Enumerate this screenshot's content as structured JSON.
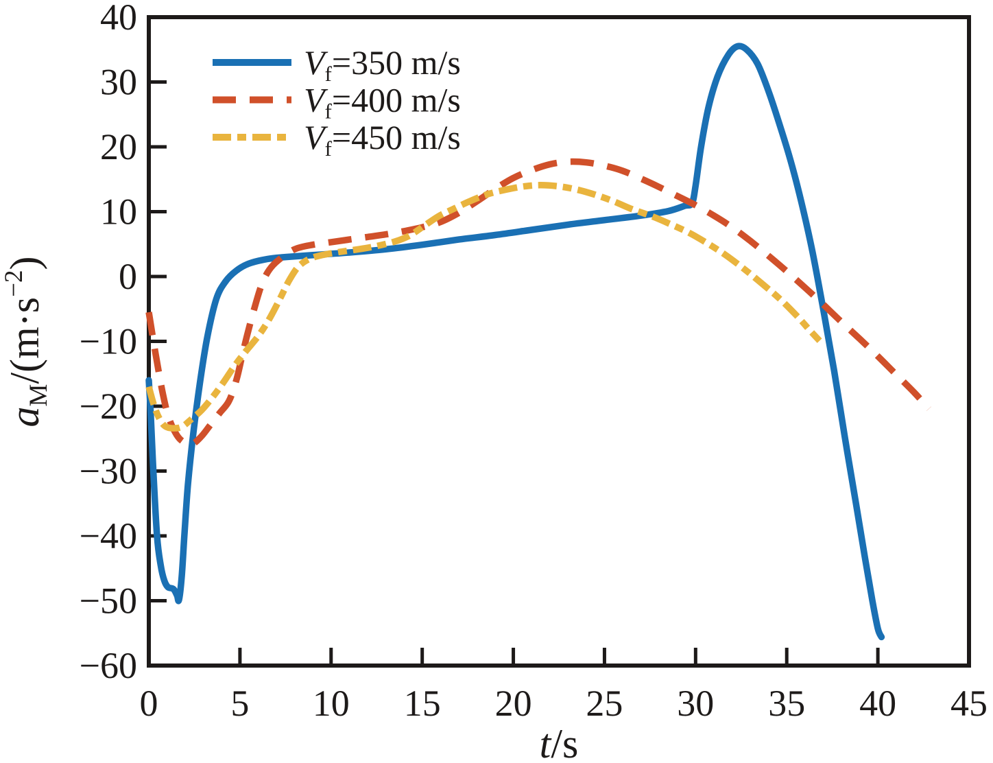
{
  "figure": {
    "background": "#ffffff",
    "axis_color": "#1d1a19"
  },
  "chart_data": {
    "type": "line",
    "title": "",
    "xlabel": "t/s",
    "ylabel": "aM/(m·s−2)",
    "xlabel_parts": [
      {
        "text": "t",
        "italic": true
      },
      {
        "text": "/s"
      }
    ],
    "ylabel_parts": [
      {
        "text": "a",
        "italic": true
      },
      {
        "text": "M",
        "sub": true
      },
      {
        "text": "/(m·s"
      },
      {
        "text": "−2",
        "sup": true
      },
      {
        "text": ")"
      }
    ],
    "xlim": [
      0,
      45
    ],
    "ylim": [
      -60,
      40
    ],
    "xticks": [
      0,
      5,
      10,
      15,
      20,
      25,
      30,
      35,
      40,
      45
    ],
    "yticks": [
      40,
      30,
      20,
      10,
      0,
      -10,
      -20,
      -30,
      -40,
      -50,
      -60
    ],
    "grid": false,
    "legend_position": "upper-left-inside",
    "series": [
      {
        "name": "Vf=350 m/s",
        "label_parts": [
          {
            "text": "V",
            "italic": true
          },
          {
            "text": "f",
            "sub": true
          },
          {
            "text": "=350 m/s"
          }
        ],
        "color": "#1a70b4",
        "line_style": "solid",
        "points": [
          [
            0,
            -16
          ],
          [
            0.1,
            -21
          ],
          [
            0.25,
            -30
          ],
          [
            0.45,
            -40
          ],
          [
            0.65,
            -44.5
          ],
          [
            0.85,
            -46.9
          ],
          [
            1.05,
            -47.9
          ],
          [
            1.35,
            -48.2
          ],
          [
            1.55,
            -49.2
          ],
          [
            1.65,
            -49.9
          ],
          [
            1.8,
            -46.5
          ],
          [
            1.95,
            -40
          ],
          [
            2.15,
            -32
          ],
          [
            2.45,
            -24
          ],
          [
            2.8,
            -16.5
          ],
          [
            3.2,
            -9.5
          ],
          [
            3.7,
            -3.5
          ],
          [
            4.2,
            -0.8
          ],
          [
            4.8,
            0.9
          ],
          [
            5.5,
            2.0
          ],
          [
            6.5,
            2.7
          ],
          [
            7.5,
            3.0
          ],
          [
            9,
            3.3
          ],
          [
            11,
            3.7
          ],
          [
            13,
            4.2
          ],
          [
            15,
            4.9
          ],
          [
            17,
            5.7
          ],
          [
            19,
            6.4
          ],
          [
            21,
            7.2
          ],
          [
            23,
            8.0
          ],
          [
            25,
            8.7
          ],
          [
            27,
            9.4
          ],
          [
            28.5,
            10.1
          ],
          [
            29.4,
            10.9
          ],
          [
            29.8,
            11.3
          ],
          [
            30.0,
            14
          ],
          [
            30.3,
            20
          ],
          [
            30.7,
            26
          ],
          [
            31.2,
            30.8
          ],
          [
            31.8,
            34.2
          ],
          [
            32.3,
            35.5
          ],
          [
            32.8,
            35.0
          ],
          [
            33.4,
            32.8
          ],
          [
            34.0,
            28.6
          ],
          [
            34.6,
            23.5
          ],
          [
            35.2,
            18
          ],
          [
            35.8,
            11.5
          ],
          [
            36.4,
            4
          ],
          [
            37.0,
            -5
          ],
          [
            37.6,
            -14.5
          ],
          [
            38.2,
            -25
          ],
          [
            38.8,
            -35
          ],
          [
            39.3,
            -43.5
          ],
          [
            39.7,
            -50
          ],
          [
            40.0,
            -54.3
          ],
          [
            40.2,
            -55.6
          ]
        ]
      },
      {
        "name": "Vf=400 m/s",
        "label_parts": [
          {
            "text": "V",
            "italic": true
          },
          {
            "text": "f",
            "sub": true
          },
          {
            "text": "=400 m/s"
          }
        ],
        "color": "#d0502a",
        "line_style": "dashed",
        "points": [
          [
            0,
            -5.5
          ],
          [
            0.2,
            -9
          ],
          [
            0.5,
            -14
          ],
          [
            0.8,
            -18.5
          ],
          [
            1.1,
            -21.8
          ],
          [
            1.5,
            -24.3
          ],
          [
            1.9,
            -25.5
          ],
          [
            2.4,
            -25.8
          ],
          [
            2.9,
            -24.6
          ],
          [
            3.4,
            -22.8
          ],
          [
            3.9,
            -21
          ],
          [
            4.4,
            -19.2
          ],
          [
            4.8,
            -16
          ],
          [
            5.1,
            -12.5
          ],
          [
            5.4,
            -9
          ],
          [
            5.8,
            -4.8
          ],
          [
            6.2,
            -1.2
          ],
          [
            6.6,
            1
          ],
          [
            7.1,
            2.5
          ],
          [
            8,
            4.2
          ],
          [
            9,
            4.9
          ],
          [
            10,
            5.3
          ],
          [
            11,
            5.7
          ],
          [
            12,
            6.1
          ],
          [
            13,
            6.5
          ],
          [
            14,
            7.0
          ],
          [
            15,
            7.6
          ],
          [
            16,
            8.4
          ],
          [
            17,
            9.8
          ],
          [
            18,
            11.6
          ],
          [
            19,
            13.5
          ],
          [
            20,
            15.2
          ],
          [
            21,
            16.4
          ],
          [
            22,
            17.3
          ],
          [
            23,
            17.7
          ],
          [
            24,
            17.6
          ],
          [
            25,
            17.1
          ],
          [
            26,
            16.3
          ],
          [
            27,
            15.1
          ],
          [
            28,
            13.8
          ],
          [
            29,
            12.4
          ],
          [
            30,
            11.0
          ],
          [
            31,
            9.4
          ],
          [
            32,
            7.6
          ],
          [
            33,
            5.5
          ],
          [
            34,
            3.2
          ],
          [
            35,
            0.8
          ],
          [
            36,
            -1.7
          ],
          [
            37,
            -4.3
          ],
          [
            38,
            -7.0
          ],
          [
            39,
            -9.6
          ],
          [
            40,
            -12.3
          ],
          [
            41,
            -15.1
          ],
          [
            42,
            -17.9
          ],
          [
            42.8,
            -20.4
          ]
        ]
      },
      {
        "name": "Vf=450 m/s",
        "label_parts": [
          {
            "text": "V",
            "italic": true
          },
          {
            "text": "f",
            "sub": true
          },
          {
            "text": "=450 m/s"
          }
        ],
        "color": "#e9b43e",
        "line_style": "dashdot",
        "points": [
          [
            0,
            -17
          ],
          [
            0.3,
            -20
          ],
          [
            0.6,
            -22
          ],
          [
            0.9,
            -23.1
          ],
          [
            1.3,
            -23.4
          ],
          [
            1.8,
            -23.2
          ],
          [
            2.3,
            -22.1
          ],
          [
            2.9,
            -20.6
          ],
          [
            3.5,
            -18.6
          ],
          [
            4.1,
            -16.3
          ],
          [
            4.7,
            -13.8
          ],
          [
            5.3,
            -11.6
          ],
          [
            6.0,
            -9.2
          ],
          [
            6.6,
            -6.6
          ],
          [
            7.2,
            -3.4
          ],
          [
            7.7,
            -0.6
          ],
          [
            8.2,
            1.5
          ],
          [
            8.8,
            2.7
          ],
          [
            9.5,
            3.3
          ],
          [
            10.5,
            3.8
          ],
          [
            11.5,
            4.2
          ],
          [
            12.5,
            4.7
          ],
          [
            13.5,
            5.4
          ],
          [
            14.3,
            6.3
          ],
          [
            15.1,
            7.8
          ],
          [
            15.9,
            9.3
          ],
          [
            16.7,
            10.4
          ],
          [
            17.6,
            11.6
          ],
          [
            18.6,
            12.7
          ],
          [
            19.6,
            13.4
          ],
          [
            20.6,
            13.9
          ],
          [
            21.5,
            14.1
          ],
          [
            22.5,
            13.9
          ],
          [
            23.5,
            13.4
          ],
          [
            24.5,
            12.6
          ],
          [
            25.5,
            11.6
          ],
          [
            26.5,
            10.4
          ],
          [
            27.6,
            9.3
          ],
          [
            28.6,
            8.1
          ],
          [
            29.6,
            6.8
          ],
          [
            30.6,
            5.2
          ],
          [
            31.6,
            3.4
          ],
          [
            32.6,
            1.3
          ],
          [
            33.6,
            -1.0
          ],
          [
            34.6,
            -3.4
          ],
          [
            35.6,
            -6.2
          ],
          [
            36.3,
            -8.4
          ],
          [
            36.8,
            -9.9
          ]
        ]
      }
    ]
  }
}
